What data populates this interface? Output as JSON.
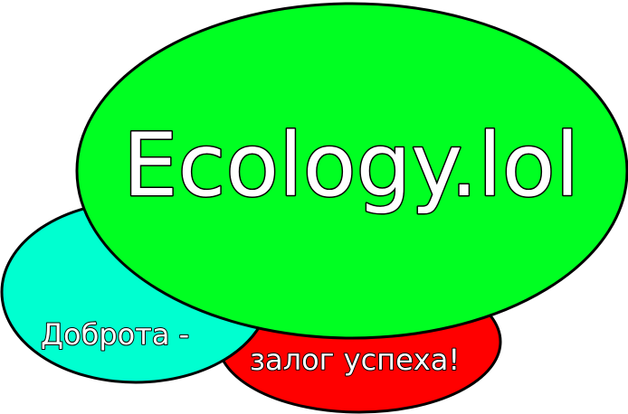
{
  "logo": {
    "title": "Ecology.lol",
    "slogan_part1": "Доброта -",
    "slogan_part2": "залог успеха!"
  },
  "colors": {
    "cyan_ellipse": "#00ffd0",
    "red_ellipse": "#ff0000",
    "green_ellipse": "#00ff22",
    "outline": "#000000",
    "text_fill": "#ffffff"
  }
}
